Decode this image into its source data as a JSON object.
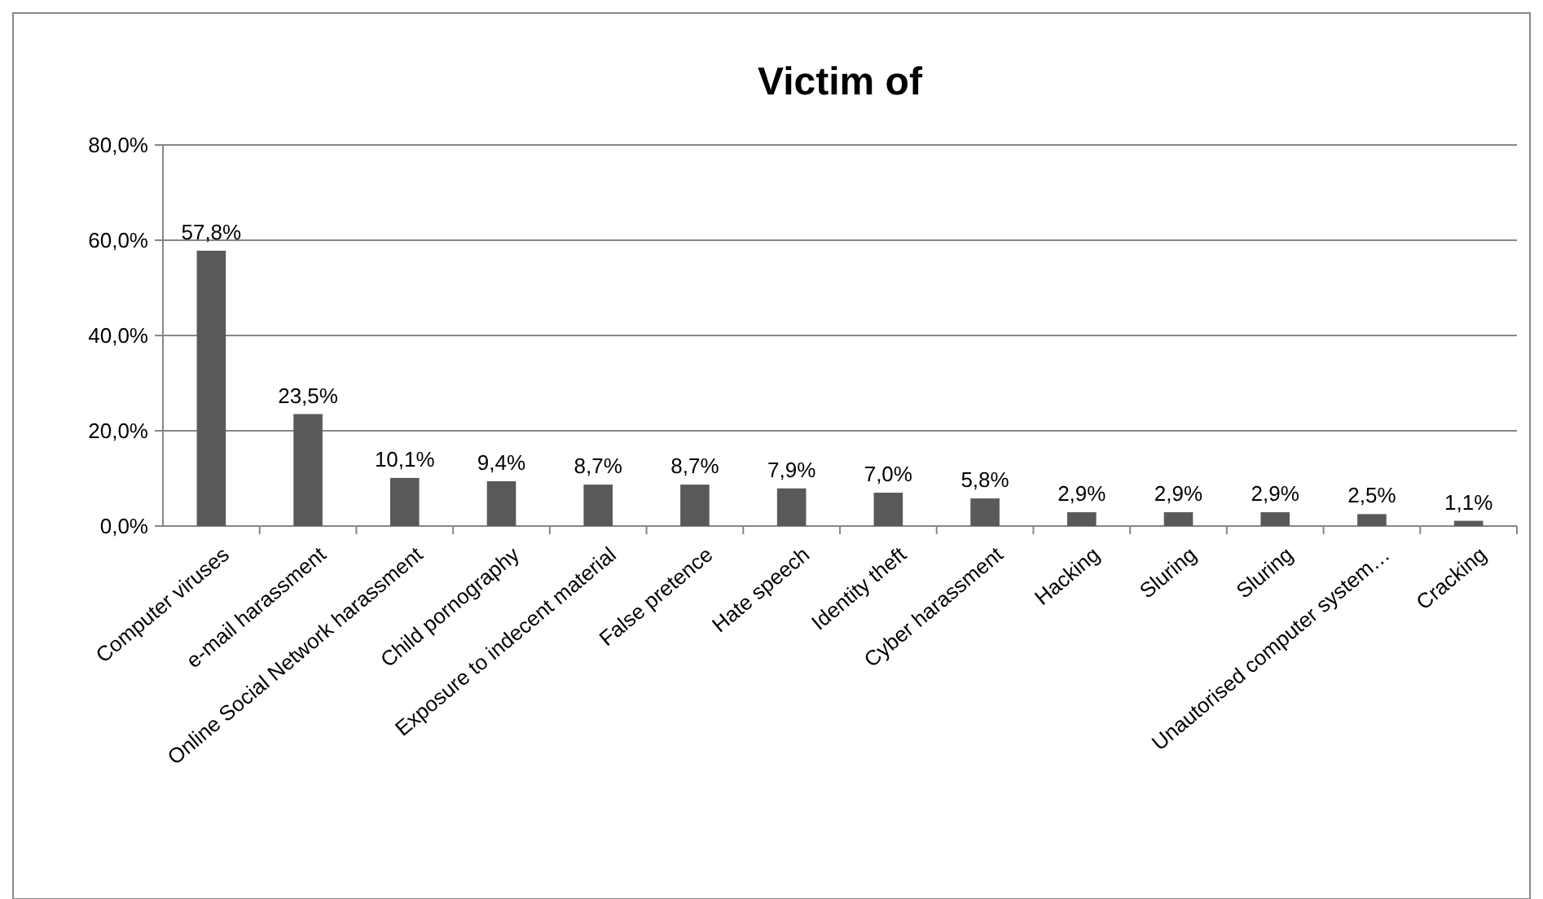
{
  "chart_data": {
    "type": "bar",
    "title": "Victim of",
    "categories": [
      "Computer viruses",
      "e-mail harassment",
      "Online Social Network harassment",
      "Child pornography",
      "Exposure to indecent material",
      "False pretence",
      "Hate speech",
      "Identity theft",
      "Cyber harassment",
      "Hacking",
      "Sluring",
      "Sluring",
      "Unautorised computer system…",
      "Cracking"
    ],
    "values": [
      57.8,
      23.5,
      10.1,
      9.4,
      8.7,
      8.7,
      7.9,
      7.0,
      5.8,
      2.9,
      2.9,
      2.9,
      2.5,
      1.1
    ],
    "value_labels": [
      "57,8%",
      "23,5%",
      "10,1%",
      "9,4%",
      "8,7%",
      "8,7%",
      "7,9%",
      "7,0%",
      "5,8%",
      "2,9%",
      "2,9%",
      "2,9%",
      "2,5%",
      "1,1%"
    ],
    "color": "#595959",
    "ylim": [
      0,
      80
    ],
    "yticks": [
      {
        "value": 0,
        "label": "0,0%"
      },
      {
        "value": 20,
        "label": "20,0%"
      },
      {
        "value": 40,
        "label": "40,0%"
      },
      {
        "value": 60,
        "label": "60,0%"
      },
      {
        "value": 80,
        "label": "80,0%"
      }
    ],
    "grid": "y"
  }
}
